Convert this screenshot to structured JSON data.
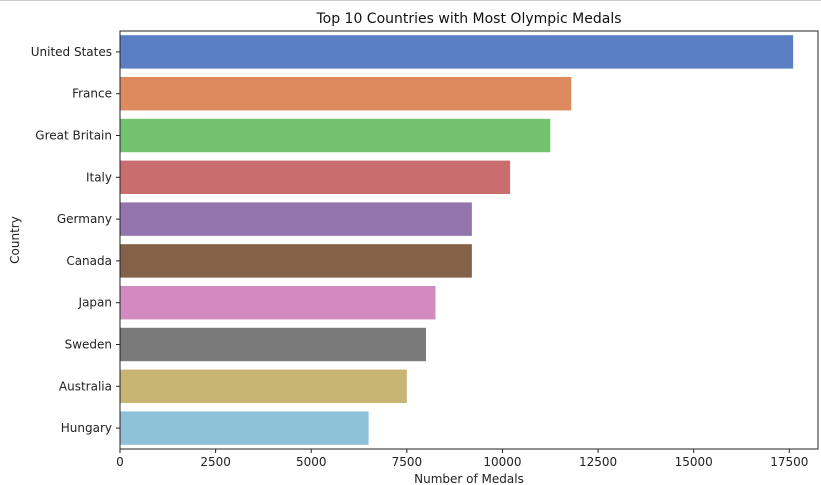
{
  "chart_data": {
    "type": "bar",
    "orientation": "horizontal",
    "title": "Top 10 Countries with Most Olympic Medals",
    "xlabel": "Number of Medals",
    "ylabel": "Country",
    "xlim": [
      0,
      18250
    ],
    "xticks": [
      0,
      2500,
      5000,
      7500,
      10000,
      12500,
      15000,
      17500
    ],
    "xtick_labels": [
      "0",
      "2500",
      "5000",
      "7500",
      "10000",
      "12500",
      "15000",
      "17500"
    ],
    "grid": false,
    "categories": [
      "United States",
      "France",
      "Great Britain",
      "Italy",
      "Germany",
      "Canada",
      "Japan",
      "Sweden",
      "Australia",
      "Hungary"
    ],
    "values": [
      17600,
      11800,
      11250,
      10200,
      9200,
      9200,
      8250,
      8000,
      7500,
      6500
    ],
    "colors": [
      "#5a7fc4",
      "#dd8b5e",
      "#73c270",
      "#c96d6e",
      "#9474ac",
      "#836247",
      "#d28bc1",
      "#7a7a7a",
      "#c8b574",
      "#8ec0d8"
    ]
  }
}
